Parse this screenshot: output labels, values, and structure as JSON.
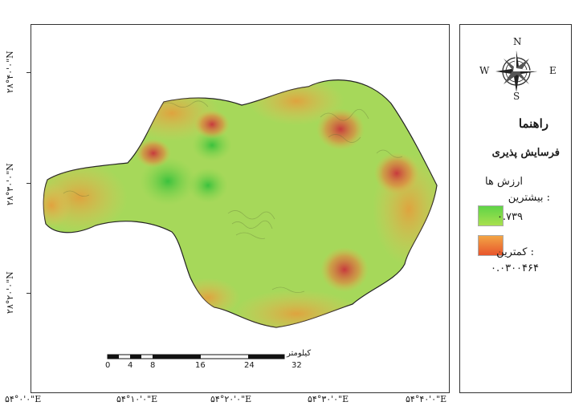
{
  "map": {
    "lat_labels": [
      "۲۸°۴۰'۰\"N",
      "۲۸°۳۰'۰\"N",
      "۲۸°۲۰'۰\"N"
    ],
    "lon_labels": [
      "۵۴°۰'۰\"E",
      "۵۴°۱۰'۰\"E",
      "۵۴°۲۰'۰\"E",
      "۵۴°۳۰'۰\"E",
      "۵۴°۴۰'۰\"E"
    ],
    "scale_bar": {
      "unit": "کیلومتر",
      "ticks": [
        "0",
        "4",
        "8",
        "16",
        "24",
        "32"
      ]
    }
  },
  "legend": {
    "compass": {
      "n": "N",
      "s": "S",
      "e": "E",
      "w": "W"
    },
    "title": "راهنما",
    "layer_name": "فرسایش پذیری",
    "values_heading": "ارزش ها",
    "high_label": ": بیشترین",
    "high_value": "۰.۷۳۹",
    "low_label": ": کمترین",
    "low_value": "۰.۰۳۰۰۴۶۴",
    "high_color": "#5fd447",
    "low_color": "#e8552c"
  }
}
